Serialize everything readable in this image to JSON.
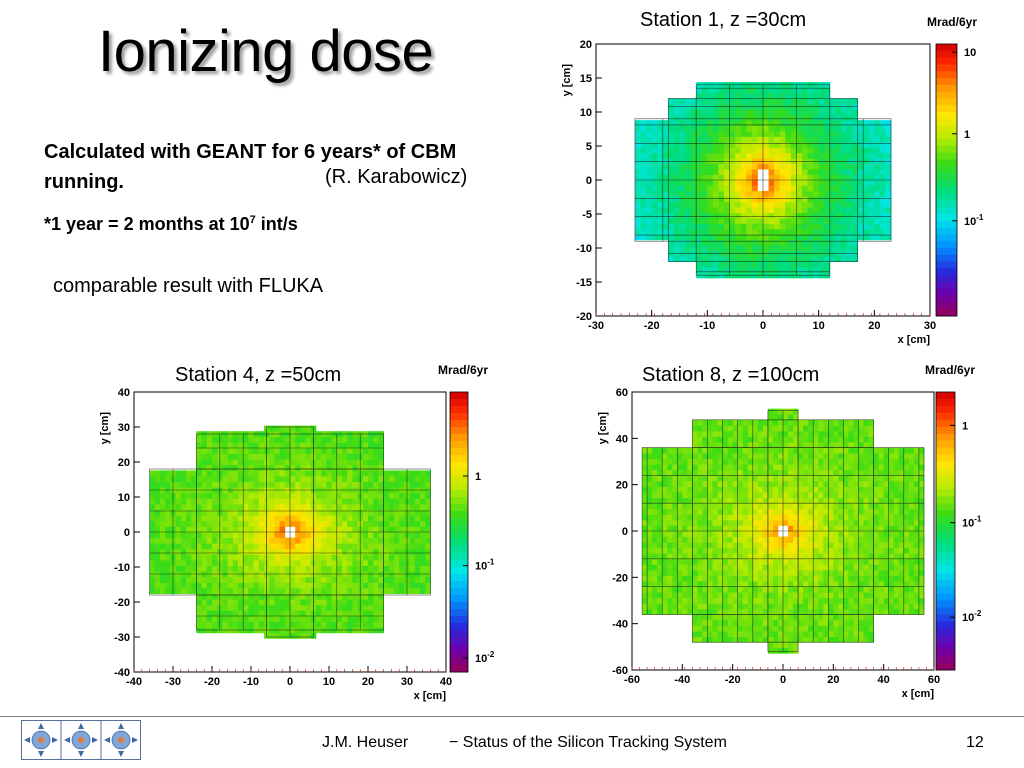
{
  "slide": {
    "title": "Ionizing dose",
    "description_line": "Calculated with GEANT  for 6 years* of CBM running.",
    "author_credit": "(R. Karabowicz)",
    "footnote_main": "*1 year = 2 months at 10",
    "footnote_exp": "7",
    "footnote_end": " int/s",
    "comparison_note": "comparable result with FLUKA"
  },
  "footer": {
    "author": "J.M. Heuser",
    "title": "− Status of the Silicon Tracking System",
    "page": "12"
  },
  "colors": {
    "hot_spot": "#d40000",
    "background": "#ffffff",
    "frame": "#000000",
    "footer_rule": "#7f7f7f"
  },
  "chart_data": [
    {
      "type": "heatmap",
      "title": "Station  1, z =30cm",
      "xlabel": "x [cm]",
      "ylabel": "y [cm]",
      "xlim": [
        -30,
        30
      ],
      "ylim": [
        -20,
        20
      ],
      "xticks": [
        -30,
        -20,
        -10,
        0,
        10,
        20,
        30
      ],
      "yticks": [
        -20,
        -15,
        -10,
        -5,
        0,
        5,
        10,
        15,
        20
      ],
      "colorbar_unit": "Mrad/6yr",
      "colorbar_ticks": [
        "10",
        "1",
        "10-1"
      ],
      "colorbar_range": [
        0.03,
        20
      ],
      "peak_dose": 10,
      "edge_dose": 0.15,
      "hole_halfwidth": [
        1,
        2
      ],
      "sensor_rows": [
        {
          "x": [
            -23,
            23
          ],
          "y": [
            -9,
            9
          ]
        },
        {
          "x": [
            -17,
            17
          ],
          "y": [
            -12,
            12
          ]
        },
        {
          "x": [
            -12,
            12
          ],
          "y": [
            -14,
            14
          ]
        }
      ],
      "grid_step": [
        6,
        2.7
      ]
    },
    {
      "type": "heatmap",
      "title": "Station  4, z =50cm",
      "xlabel": "x [cm]",
      "ylabel": "y [cm]",
      "xlim": [
        -40,
        40
      ],
      "ylim": [
        -40,
        40
      ],
      "xticks": [
        -40,
        -30,
        -20,
        -10,
        0,
        10,
        20,
        30,
        40
      ],
      "yticks": [
        -40,
        -30,
        -20,
        -10,
        0,
        10,
        20,
        30,
        40
      ],
      "colorbar_unit": "Mrad/6yr",
      "colorbar_ticks": [
        "1",
        "10-1",
        "10-2"
      ],
      "colorbar_range": [
        0.008,
        4
      ],
      "peak_dose": 2,
      "edge_dose": 0.25,
      "hole_halfwidth": [
        2,
        2
      ],
      "sensor_rows": [
        {
          "x": [
            -36,
            36
          ],
          "y": [
            -18,
            18
          ]
        },
        {
          "x": [
            -24,
            24
          ],
          "y": [
            -28,
            28
          ]
        },
        {
          "x": [
            -6,
            6
          ],
          "y": [
            -30,
            30
          ]
        }
      ],
      "grid_step": [
        6,
        6
      ]
    },
    {
      "type": "heatmap",
      "title": "Station  8, z =100cm",
      "xlabel": "x [cm]",
      "ylabel": "y [cm]",
      "xlim": [
        -60,
        60
      ],
      "ylim": [
        -60,
        60
      ],
      "xticks": [
        -60,
        -40,
        -20,
        0,
        20,
        40,
        60
      ],
      "yticks": [
        -60,
        -40,
        -20,
        0,
        20,
        40,
        60
      ],
      "colorbar_unit": "Mrad/6yr",
      "colorbar_ticks": [
        "1",
        "10-1",
        "10-2"
      ],
      "colorbar_range": [
        0.005,
        3
      ],
      "peak_dose": 1.2,
      "edge_dose": 0.2,
      "hole_halfwidth": [
        3,
        3
      ],
      "sensor_rows": [
        {
          "x": [
            -56,
            56
          ],
          "y": [
            -36,
            36
          ]
        },
        {
          "x": [
            -36,
            36
          ],
          "y": [
            -48,
            48
          ]
        },
        {
          "x": [
            -6,
            6
          ],
          "y": [
            -52,
            52
          ]
        }
      ],
      "grid_step": [
        6,
        12
      ]
    }
  ]
}
